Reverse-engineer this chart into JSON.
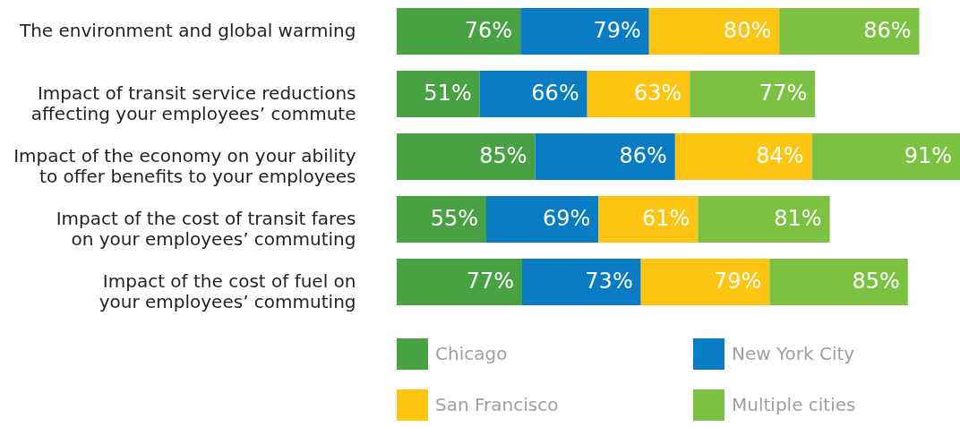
{
  "chart_data": {
    "type": "bar",
    "orientation": "horizontal",
    "stacked": true,
    "tick_labels": "y",
    "legend": "bottom",
    "categories": [
      "The environment and global warming",
      "Impact of transit service reductions affecting your employees’ commute",
      "Impact of the economy on your ability to offer benefits to your employees",
      "Impact of the cost of transit fares on your employees’ commuting",
      "Impact of the cost of fuel on your employees’ commuting"
    ],
    "series": [
      {
        "name": "Chicago",
        "color": "#48a244",
        "values": [
          76,
          51,
          85,
          55,
          77
        ],
        "value_labels": [
          "76%",
          "51%",
          "85%",
          "55%",
          "77%"
        ]
      },
      {
        "name": "New York City",
        "color": "#0a7cc4",
        "values": [
          79,
          66,
          86,
          69,
          73
        ],
        "value_labels": [
          "79%",
          "66%",
          "86%",
          "69%",
          "73%"
        ]
      },
      {
        "name": "San Francisco",
        "color": "#fdc512",
        "values": [
          80,
          63,
          84,
          61,
          79
        ],
        "value_labels": [
          "80%",
          "63%",
          "84%",
          "61%",
          "79%"
        ]
      },
      {
        "name": "Multiple cities",
        "color": "#7dc142",
        "values": [
          86,
          77,
          91,
          81,
          85
        ],
        "value_labels": [
          "86%",
          "77%",
          "91%",
          "81%",
          "85%"
        ]
      }
    ]
  }
}
